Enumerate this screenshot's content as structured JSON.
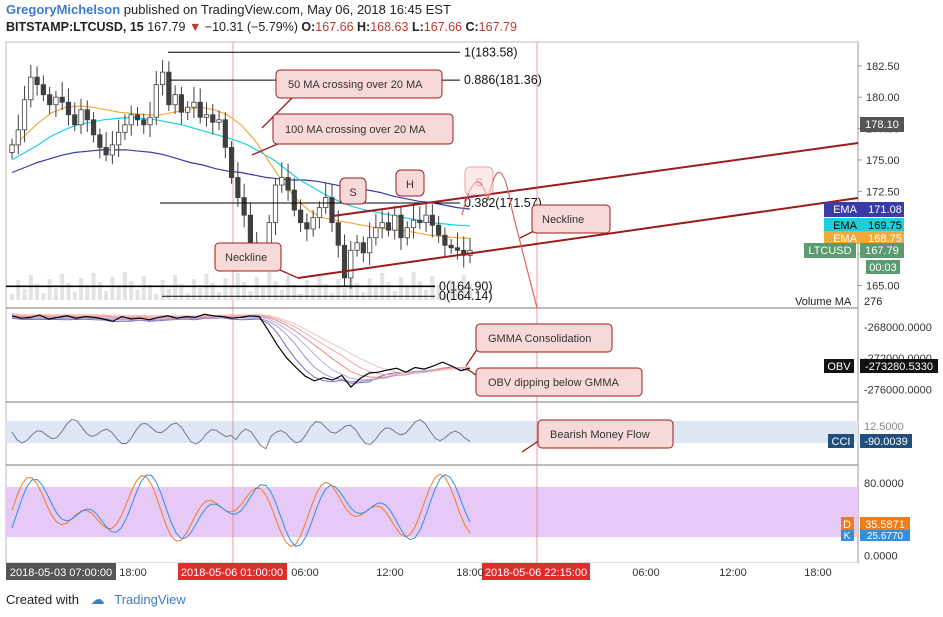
{
  "header": {
    "username": "GregoryMichelson",
    "published_text": "published on TradingView.com, May 06, 2018 16:45 EST",
    "symbol": "BITSTAMP:LTCUSD, 15",
    "last": "167.79",
    "change": "−10.31 (−5.79%)",
    "open_label": "O:",
    "open": "167.66",
    "high_label": "H:",
    "high": "168.63",
    "low_label": "L:",
    "low": "167.66",
    "close_label": "C:",
    "close": "167.79"
  },
  "footer": {
    "created_with": "Created with",
    "brand": "TradingView"
  },
  "colors": {
    "candle": "#3f3f3f",
    "fib": "#000000",
    "channel": "#9b1c1c",
    "callout_fill": "#f8d9d9",
    "callout_border": "#9b1c1c",
    "stoch_band": "#e6c9f7",
    "cci_band": "#dfe7f5"
  },
  "chart_data": [
    {
      "type": "candlestick",
      "title": "LTCUSD price (15 min)",
      "ylim": [
        163.2,
        184.4
      ],
      "price_axis": [
        "182.50",
        "180.00",
        "177.50",
        "175.00",
        "172.50",
        "170.00",
        "167.50",
        "165.00"
      ],
      "close_series": [
        176.2,
        177.4,
        179.8,
        181.6,
        181.0,
        180.2,
        179.4,
        180.0,
        179.6,
        178.6,
        177.8,
        179.0,
        178.2,
        177.0,
        176.0,
        175.4,
        176.2,
        177.2,
        177.8,
        178.6,
        178.2,
        177.8,
        178.4,
        181.0,
        182.0,
        179.4,
        180.2,
        178.8,
        179.2,
        179.6,
        178.4,
        178.6,
        178.0,
        178.2,
        176.0,
        173.6,
        172.0,
        170.6,
        168.4,
        167.2,
        167.0,
        170.0,
        173.0,
        173.6,
        172.6,
        171.0,
        170.0,
        169.5,
        170.4,
        171.2,
        172.0,
        170.0,
        168.2,
        165.6,
        167.8,
        168.4,
        167.6,
        168.8,
        169.6,
        170.0,
        169.4,
        170.6,
        168.8,
        169.6,
        170.2,
        170.0,
        170.6,
        169.8,
        169.0,
        168.2,
        168.0,
        167.8,
        167.4,
        167.79
      ],
      "series": [
        {
          "name": "EMA",
          "value": "171.08",
          "color": "#3a3aa8",
          "values": [
            174.0,
            174.4,
            174.8,
            175.1,
            175.4,
            175.6,
            175.7,
            175.8,
            175.8,
            175.8,
            175.7,
            175.6,
            175.4,
            175.1,
            174.8,
            174.6,
            174.3,
            174.1,
            174.0,
            173.8,
            173.6,
            173.5,
            173.4,
            173.4,
            173.3,
            173.1,
            172.9,
            172.7,
            172.6,
            172.4,
            172.1,
            171.9,
            171.7,
            171.6,
            171.4,
            171.2,
            171.08
          ]
        },
        {
          "name": "EMA",
          "value": "169.75",
          "color": "#18d1e0",
          "values": [
            175.0,
            175.6,
            176.2,
            176.9,
            177.4,
            177.8,
            178.0,
            178.2,
            178.3,
            178.4,
            178.3,
            178.2,
            178.0,
            177.8,
            177.5,
            177.2,
            176.9,
            176.6,
            176.2,
            175.6,
            175.0,
            174.2,
            173.4,
            172.8,
            172.2,
            171.7,
            171.3,
            171.0,
            170.8,
            170.6,
            170.4,
            170.2,
            170.0,
            169.9,
            169.8,
            169.75
          ]
        },
        {
          "name": "EMA",
          "value": "168.75",
          "color": "#f2a93b",
          "values": [
            176.0,
            177.0,
            178.0,
            178.8,
            179.2,
            179.3,
            179.2,
            179.0,
            178.8,
            178.7,
            178.6,
            178.6,
            178.8,
            179.0,
            179.2,
            179.0,
            178.6,
            177.8,
            176.6,
            175.0,
            173.4,
            172.0,
            171.0,
            170.4,
            170.2,
            170.0,
            169.8,
            169.6,
            169.5,
            169.4,
            169.2,
            169.0,
            168.9,
            168.8,
            168.75
          ]
        }
      ],
      "last_price_label": "LTCUSD",
      "last_price": "167.79",
      "countdown": "00:03",
      "tag_178": "178.10",
      "volume_ma_label": "Volume MA",
      "volume_ma": "276",
      "fib_levels": [
        {
          "label": "1(183.58)",
          "price": 183.58
        },
        {
          "label": "0.886(181.36)",
          "price": 181.36
        },
        {
          "label": "0.382(171.57)",
          "price": 171.57
        },
        {
          "label": "0(164.90)",
          "price": 164.9
        },
        {
          "label": "0(164.14)",
          "price": 164.14
        }
      ],
      "annotations": [
        "50 MA crossing over 20 MA",
        "100 MA crossing over 20 MA",
        "Neckline",
        "Neckline",
        "S",
        "H",
        "S"
      ]
    },
    {
      "type": "line",
      "title": "OBV with GMMA",
      "ylim": [
        -277600,
        -265600
      ],
      "axis_ticks": [
        "-268000.0000",
        "-272000.0000",
        "-276000.0000"
      ],
      "label": "OBV",
      "value": "-273280.5330",
      "values": [
        -266600,
        -266900,
        -266800,
        -266500,
        -267000,
        -266800,
        -266600,
        -266900,
        -266700,
        -266800,
        -267000,
        -267300,
        -266700,
        -267000,
        -266900,
        -267100,
        -266800,
        -266600,
        -266900,
        -266700,
        -266800,
        -266400,
        -266600,
        -266700,
        -266900,
        -266800,
        -266600,
        -266700,
        -268500,
        -270400,
        -272000,
        -273200,
        -274300,
        -274900,
        -274500,
        -274800,
        -274200,
        -275700,
        -274600,
        -273900,
        -273800,
        -273500,
        -273300,
        -273800,
        -273200,
        -273400,
        -273000,
        -272500,
        -273000,
        -273600,
        -273280
      ],
      "annotations": [
        "GMMA Consolidation",
        "OBV dipping below GMMA"
      ]
    },
    {
      "type": "line",
      "title": "CCI",
      "label": "CCI",
      "value": "-90.0039",
      "partial_tick": "12.5000",
      "annotations": [
        "Bearish Money Flow"
      ]
    },
    {
      "type": "line",
      "title": "Stochastic",
      "ylim": [
        -8,
        100
      ],
      "axis_ticks": [
        "80.0000",
        "0.0000"
      ],
      "series": [
        {
          "name": "D",
          "value": "35.5871",
          "color": "#f07c1c"
        },
        {
          "name": "K",
          "value": "25.6770",
          "color": "#2f8fe0"
        }
      ]
    }
  ],
  "time_axis": {
    "labels": [
      "18:00",
      "06:00",
      "12:00",
      "18:00",
      "06:00",
      "12:00",
      "18:00"
    ],
    "highlight_start": "2018-05-03 07:00:00",
    "highlight_a": "2018-05-06 01:00:00",
    "highlight_b": "2018-05-06 22:15:00"
  }
}
